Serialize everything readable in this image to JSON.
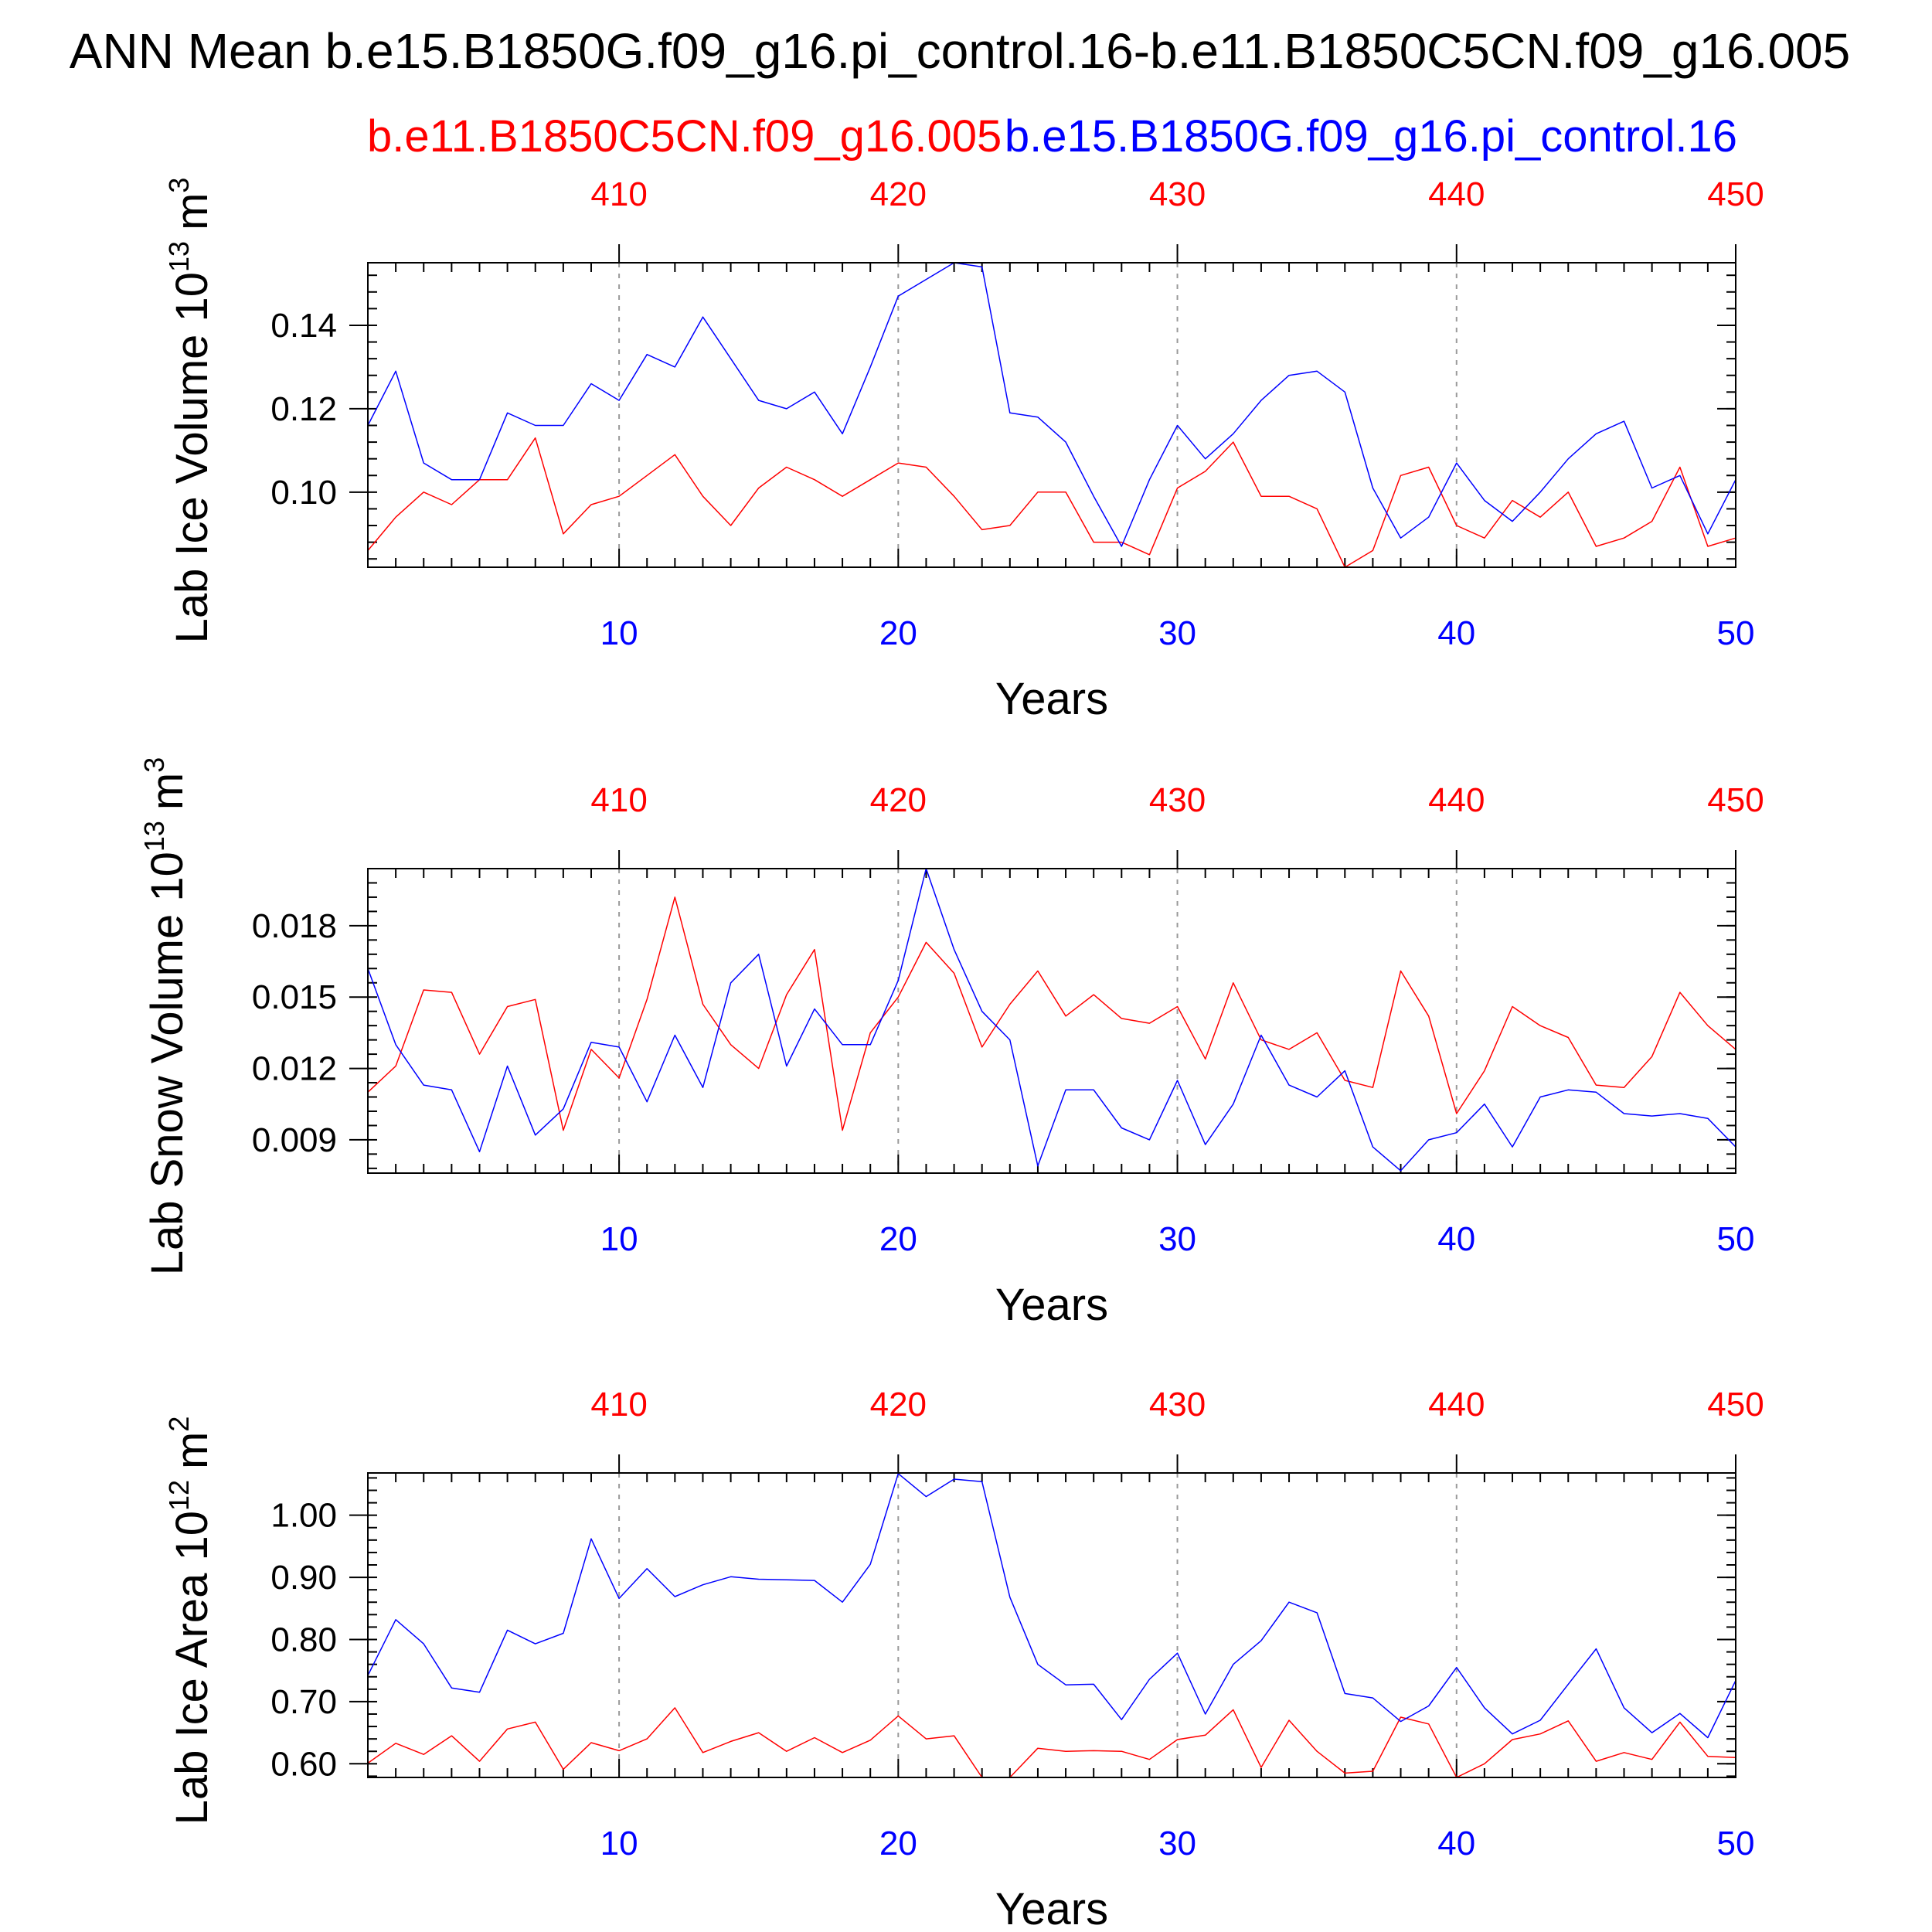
{
  "figure": {
    "title": "ANN Mean b.e15.B1850G.f09_g16.pi_control.16-b.e11.B1850C5CN.f09_g16.005",
    "legend": {
      "red_label": "b.e11.B1850C5CN.f09_g16.005",
      "blue_label": "b.e15.B1850G.f09_g16.pi_control.16"
    },
    "colors": {
      "red": "#ff0000",
      "blue": "#0000ff",
      "axis": "#000000",
      "grid": "#9a9a9a"
    }
  },
  "chart_data": [
    {
      "type": "line",
      "title": "",
      "ylabel_main": "Lab Ice Volume 10",
      "ylabel_exp": "13",
      "ylabel_unit": "m",
      "ylabel_unit_exp": "3",
      "xlabel": "Years",
      "xlim": [
        1,
        50
      ],
      "top_xlim": [
        401,
        450
      ],
      "ylim": [
        0.082,
        0.155
      ],
      "xticks_bottom": [
        "10",
        "20",
        "30",
        "40",
        "50"
      ],
      "xticks_top": [
        "410",
        "420",
        "430",
        "440",
        "450"
      ],
      "yticks": [
        0.1,
        0.12,
        0.14
      ],
      "ytick_labels": [
        "0.10",
        "0.12",
        "0.14"
      ],
      "series": [
        {
          "name": "b.e11.B1850C5CN.f09_g16.005",
          "color": "#ff0000",
          "x": [
            1,
            2,
            3,
            4,
            5,
            6,
            7,
            8,
            9,
            10,
            11,
            12,
            13,
            14,
            15,
            16,
            17,
            18,
            19,
            20,
            21,
            22,
            23,
            24,
            25,
            26,
            27,
            28,
            29,
            30,
            31,
            32,
            33,
            34,
            35,
            36,
            37,
            38,
            39,
            40,
            41,
            42,
            43,
            44,
            45,
            46,
            47,
            48,
            49,
            50
          ],
          "values": [
            0.086,
            0.094,
            0.1,
            0.097,
            0.103,
            0.103,
            0.113,
            0.09,
            0.097,
            0.099,
            0.104,
            0.109,
            0.099,
            0.092,
            0.101,
            0.106,
            0.103,
            0.099,
            0.103,
            0.107,
            0.106,
            0.099,
            0.091,
            0.092,
            0.1,
            0.1,
            0.088,
            0.088,
            0.085,
            0.101,
            0.105,
            0.112,
            0.099,
            0.099,
            0.096,
            0.082,
            0.086,
            0.104,
            0.106,
            0.092,
            0.089,
            0.098,
            0.094,
            0.1,
            0.087,
            0.089,
            0.093,
            0.106,
            0.087,
            0.089
          ]
        },
        {
          "name": "b.e15.B1850G.f09_g16.pi_control.16",
          "color": "#0000ff",
          "x": [
            1,
            2,
            3,
            4,
            5,
            6,
            7,
            8,
            9,
            10,
            11,
            12,
            13,
            14,
            15,
            16,
            17,
            18,
            19,
            20,
            21,
            22,
            23,
            24,
            25,
            26,
            27,
            28,
            29,
            30,
            31,
            32,
            33,
            34,
            35,
            36,
            37,
            38,
            39,
            40,
            41,
            42,
            43,
            44,
            45,
            46,
            47,
            48,
            49,
            50
          ],
          "values": [
            0.116,
            0.129,
            0.107,
            0.103,
            0.103,
            0.119,
            0.116,
            0.116,
            0.126,
            0.122,
            0.133,
            0.13,
            0.142,
            0.132,
            0.122,
            0.12,
            0.124,
            0.114,
            0.13,
            0.147,
            0.151,
            0.155,
            0.154,
            0.119,
            0.118,
            0.112,
            0.099,
            0.087,
            0.103,
            0.116,
            0.108,
            0.114,
            0.122,
            0.128,
            0.129,
            0.124,
            0.101,
            0.089,
            0.094,
            0.107,
            0.098,
            0.093,
            0.1,
            0.108,
            0.114,
            0.117,
            0.101,
            0.104,
            0.09,
            0.103
          ]
        }
      ]
    },
    {
      "type": "line",
      "title": "",
      "ylabel_main": "Lab Snow Volume 10",
      "ylabel_exp": "13",
      "ylabel_unit": "m",
      "ylabel_unit_exp": "3",
      "xlabel": "Years",
      "xlim": [
        1,
        50
      ],
      "top_xlim": [
        401,
        450
      ],
      "ylim": [
        0.0076,
        0.0204
      ],
      "xticks_bottom": [
        "10",
        "20",
        "30",
        "40",
        "50"
      ],
      "xticks_top": [
        "410",
        "420",
        "430",
        "440",
        "450"
      ],
      "yticks": [
        0.009,
        0.012,
        0.015,
        0.018
      ],
      "ytick_labels": [
        "0.009",
        "0.012",
        "0.015",
        "0.018"
      ],
      "series": [
        {
          "name": "b.e11.B1850C5CN.f09_g16.005",
          "color": "#ff0000",
          "x": [
            1,
            2,
            3,
            4,
            5,
            6,
            7,
            8,
            9,
            10,
            11,
            12,
            13,
            14,
            15,
            16,
            17,
            18,
            19,
            20,
            21,
            22,
            23,
            24,
            25,
            26,
            27,
            28,
            29,
            30,
            31,
            32,
            33,
            34,
            35,
            36,
            37,
            38,
            39,
            40,
            41,
            42,
            43,
            44,
            45,
            46,
            47,
            48,
            49,
            50
          ],
          "values": [
            0.011,
            0.0121,
            0.0153,
            0.0152,
            0.0126,
            0.0146,
            0.0149,
            0.0094,
            0.0128,
            0.0116,
            0.0149,
            0.0192,
            0.0147,
            0.013,
            0.012,
            0.0151,
            0.017,
            0.0094,
            0.0135,
            0.015,
            0.0173,
            0.016,
            0.0129,
            0.0147,
            0.0161,
            0.0142,
            0.0151,
            0.0141,
            0.0139,
            0.0146,
            0.0124,
            0.0156,
            0.0132,
            0.0128,
            0.0135,
            0.0115,
            0.0112,
            0.0161,
            0.0142,
            0.0101,
            0.0119,
            0.0146,
            0.0138,
            0.0133,
            0.0113,
            0.0112,
            0.0125,
            0.0152,
            0.0138,
            0.0128
          ]
        },
        {
          "name": "b.e15.B1850G.f09_g16.pi_control.16",
          "color": "#0000ff",
          "x": [
            1,
            2,
            3,
            4,
            5,
            6,
            7,
            8,
            9,
            10,
            11,
            12,
            13,
            14,
            15,
            16,
            17,
            18,
            19,
            20,
            21,
            22,
            23,
            24,
            25,
            26,
            27,
            28,
            29,
            30,
            31,
            32,
            33,
            34,
            35,
            36,
            37,
            38,
            39,
            40,
            41,
            42,
            43,
            44,
            45,
            46,
            47,
            48,
            49,
            50
          ],
          "values": [
            0.0162,
            0.013,
            0.0113,
            0.0111,
            0.0085,
            0.0121,
            0.0092,
            0.0103,
            0.0131,
            0.0129,
            0.0106,
            0.0134,
            0.0112,
            0.0156,
            0.0168,
            0.0121,
            0.0145,
            0.013,
            0.013,
            0.0157,
            0.0204,
            0.017,
            0.0144,
            0.0132,
            0.0079,
            0.0111,
            0.0111,
            0.0095,
            0.009,
            0.0115,
            0.0088,
            0.0105,
            0.0134,
            0.0113,
            0.0108,
            0.0119,
            0.0087,
            0.0077,
            0.009,
            0.0093,
            0.0105,
            0.0087,
            0.0108,
            0.0111,
            0.011,
            0.0101,
            0.01,
            0.0101,
            0.0099,
            0.0087
          ]
        }
      ]
    },
    {
      "type": "line",
      "title": "",
      "ylabel_main": "Lab Ice Area 10",
      "ylabel_exp": "12",
      "ylabel_unit": "m",
      "ylabel_unit_exp": "2",
      "xlabel": "Years",
      "xlim": [
        1,
        50
      ],
      "top_xlim": [
        401,
        450
      ],
      "ylim": [
        0.578,
        1.068
      ],
      "xticks_bottom": [
        "10",
        "20",
        "30",
        "40",
        "50"
      ],
      "xticks_top": [
        "410",
        "420",
        "430",
        "440",
        "450"
      ],
      "yticks": [
        0.6,
        0.7,
        0.8,
        0.9,
        1.0
      ],
      "ytick_labels": [
        "0.60",
        "0.70",
        "0.80",
        "0.90",
        "1.00"
      ],
      "series": [
        {
          "name": "b.e11.B1850C5CN.f09_g16.005",
          "color": "#ff0000",
          "x": [
            1,
            2,
            3,
            4,
            5,
            6,
            7,
            8,
            9,
            10,
            11,
            12,
            13,
            14,
            15,
            16,
            17,
            18,
            19,
            20,
            21,
            22,
            23,
            24,
            25,
            26,
            27,
            28,
            29,
            30,
            31,
            32,
            33,
            34,
            35,
            36,
            37,
            38,
            39,
            40,
            41,
            42,
            43,
            44,
            45,
            46,
            47,
            48,
            49,
            50
          ],
          "values": [
            0.601,
            0.633,
            0.615,
            0.645,
            0.604,
            0.656,
            0.667,
            0.591,
            0.634,
            0.621,
            0.64,
            0.69,
            0.618,
            0.636,
            0.65,
            0.62,
            0.642,
            0.618,
            0.638,
            0.677,
            0.64,
            0.645,
            0.578,
            0.578,
            0.625,
            0.62,
            0.621,
            0.62,
            0.607,
            0.639,
            0.646,
            0.687,
            0.594,
            0.67,
            0.62,
            0.585,
            0.588,
            0.675,
            0.664,
            0.578,
            0.6,
            0.639,
            0.648,
            0.669,
            0.604,
            0.618,
            0.607,
            0.667,
            0.612,
            0.61
          ]
        },
        {
          "name": "b.e15.B1850G.f09_g16.pi_control.16",
          "color": "#0000ff",
          "x": [
            1,
            2,
            3,
            4,
            5,
            6,
            7,
            8,
            9,
            10,
            11,
            12,
            13,
            14,
            15,
            16,
            17,
            18,
            19,
            20,
            21,
            22,
            23,
            24,
            25,
            26,
            27,
            28,
            29,
            30,
            31,
            32,
            33,
            34,
            35,
            36,
            37,
            38,
            39,
            40,
            41,
            42,
            43,
            44,
            45,
            46,
            47,
            48,
            49,
            50
          ],
          "values": [
            0.742,
            0.832,
            0.793,
            0.722,
            0.715,
            0.815,
            0.793,
            0.81,
            0.962,
            0.866,
            0.914,
            0.869,
            0.888,
            0.901,
            0.897,
            0.896,
            0.895,
            0.86,
            0.921,
            1.067,
            1.03,
            1.058,
            1.054,
            0.868,
            0.76,
            0.727,
            0.728,
            0.671,
            0.736,
            0.778,
            0.68,
            0.76,
            0.798,
            0.86,
            0.843,
            0.713,
            0.706,
            0.668,
            0.693,
            0.755,
            0.69,
            0.648,
            0.67,
            0.728,
            0.785,
            0.69,
            0.65,
            0.681,
            0.642,
            0.734
          ]
        }
      ]
    }
  ]
}
